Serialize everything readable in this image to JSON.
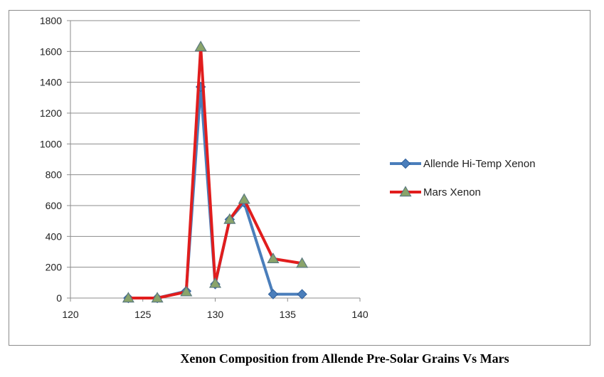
{
  "caption": "Xenon Composition from Allende Pre-Solar Grains Vs Mars",
  "chart_data": {
    "type": "line",
    "title": "",
    "xlabel": "",
    "ylabel": "",
    "xlim": [
      120,
      140
    ],
    "ylim": [
      0,
      1800
    ],
    "xticks": [
      120,
      125,
      130,
      135,
      140
    ],
    "yticks": [
      0,
      200,
      400,
      600,
      800,
      1000,
      1200,
      1400,
      1600,
      1800
    ],
    "grid": "horizontal",
    "legend_position": "right",
    "series": [
      {
        "name": "Allende Hi-Temp  Xenon",
        "color": "#4a7ebb",
        "marker": "diamond",
        "x": [
          124,
          126,
          128,
          129,
          130,
          131,
          132,
          134,
          136
        ],
        "y": [
          0,
          0,
          45,
          1370,
          90,
          510,
          620,
          25,
          25
        ]
      },
      {
        "name": "Mars Xenon",
        "color": "#e11d1d",
        "marker": "triangle",
        "x": [
          124,
          126,
          128,
          129,
          130,
          131,
          132,
          134,
          136
        ],
        "y": [
          0,
          0,
          40,
          1630,
          95,
          510,
          640,
          255,
          225
        ]
      }
    ]
  }
}
